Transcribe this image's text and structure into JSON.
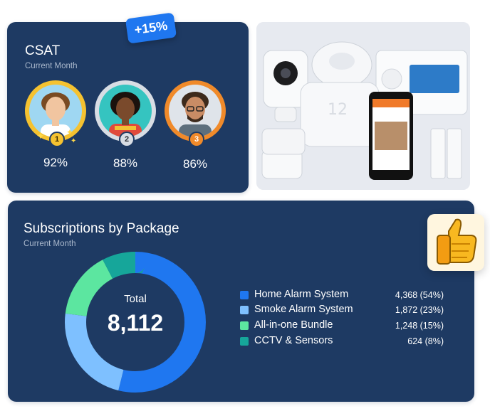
{
  "csat": {
    "title": "CSAT",
    "subtitle": "Current Month",
    "change_badge": "+15%",
    "agents": [
      {
        "rank": "1",
        "score": "92%"
      },
      {
        "rank": "2",
        "score": "88%"
      },
      {
        "rank": "3",
        "score": "86%"
      }
    ]
  },
  "subscriptions": {
    "title": "Subscriptions by Package",
    "subtitle": "Current Month",
    "total_label": "Total",
    "total_value": "8,112",
    "packages": [
      {
        "name": "Home Alarm System",
        "value": "4,368 (54%)",
        "count": 4368,
        "color": "#1f77f0"
      },
      {
        "name": "Smoke Alarm System",
        "value": "1,872 (23%)",
        "count": 1872,
        "color": "#7ec0ff"
      },
      {
        "name": "All-in-one Bundle",
        "value": "1,248 (15%)",
        "count": 1248,
        "color": "#5ce6a0"
      },
      {
        "name": "CCTV & Sensors",
        "value": "624 (8%)",
        "count": 624,
        "color": "#16a69a"
      }
    ]
  },
  "colors": {
    "card_bg": "#1e3a63",
    "accent": "#1f77f0",
    "gold": "#f5c230",
    "silver": "#d8dde4",
    "bronze": "#f08a2a"
  }
}
